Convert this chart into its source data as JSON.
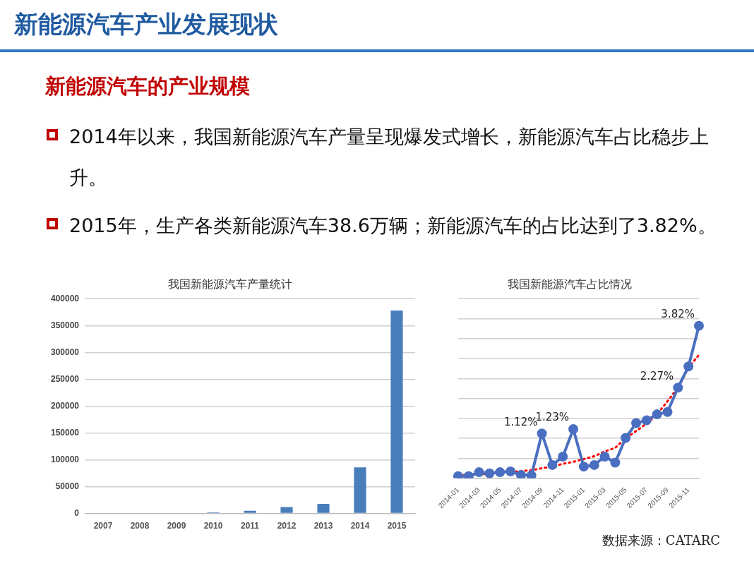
{
  "chart_data": [
    {
      "type": "other",
      "title": "新能源汽车产业发展现状",
      "subtitle": "新能源汽车的产业规模",
      "annotations": [
        "2014年以来，我国新能源汽车产量呈现爆发式增长，新能源汽车占比稳步上升。",
        "2015年，生产各类新能源汽车38.6万辆；新能源汽车的占比达到了3.82%。"
      ]
    },
    {
      "type": "bar",
      "title": "我国新能源汽车产量统计",
      "categories": [
        "2007",
        "2008",
        "2009",
        "2010",
        "2011",
        "2012",
        "2013",
        "2014",
        "2015"
      ],
      "series": [
        {
          "color": "#4a7ebb",
          "values": [
            0,
            0,
            0,
            2000,
            5000,
            12000,
            18000,
            86000,
            378000
          ]
        }
      ],
      "ylim": [
        0,
        400000
      ],
      "yticks": [
        0,
        50000,
        100000,
        150000,
        200000,
        250000,
        300000,
        350000,
        400000
      ],
      "grid": "y",
      "legend": false
    },
    {
      "type": "line",
      "title": "我国新能源汽车占比情况",
      "categories": [
        "2014-01",
        null,
        "2014-03",
        null,
        "2014-05",
        null,
        "2014-07",
        null,
        "2014-09",
        null,
        "2014-11",
        null,
        "2015-01",
        null,
        "2015-03",
        null,
        "2015-05",
        null,
        "2015-07",
        null,
        "2015-09",
        null,
        "2015-11",
        null
      ],
      "series": [
        {
          "color": "#4a6fc0",
          "marker": "circle",
          "line_style": "solid",
          "values": [
            0.05,
            0.05,
            0.15,
            0.12,
            0.15,
            0.17,
            0.08,
            0.07,
            1.12,
            0.33,
            0.54,
            1.23,
            0.29,
            0.33,
            0.54,
            0.39,
            1.01,
            1.38,
            1.45,
            1.6,
            1.66,
            2.27,
            2.8,
            3.82
          ],
          "value_labels": [
            null,
            null,
            null,
            null,
            null,
            null,
            null,
            null,
            "1.12%",
            null,
            null,
            "1.23%",
            null,
            null,
            null,
            null,
            null,
            null,
            null,
            null,
            null,
            "2.27%",
            null,
            "3.82%"
          ]
        },
        {
          "color": "#ff0000",
          "marker": "none",
          "line_style": "dotted",
          "values": [
            0.07,
            0.08,
            0.1,
            0.11,
            null,
            0.15,
            0.18,
            0.2,
            0.25,
            0.29,
            0.36,
            0.41,
            0.48,
            0.55,
            0.67,
            0.76,
            1.0,
            1.18,
            1.37,
            1.6,
            1.93,
            2.27,
            2.77,
            3.09
          ]
        }
      ],
      "ylim": [
        0,
        4.5
      ],
      "yticks": [
        {
          "value": 0,
          "label": null
        },
        {
          "value": 0.5,
          "label": null
        },
        {
          "value": 1,
          "label": null
        },
        {
          "value": 1.5,
          "label": null
        },
        {
          "value": 2,
          "label": null
        },
        {
          "value": 2.5,
          "label": null
        },
        {
          "value": 3,
          "label": null
        },
        {
          "value": 3.5,
          "label": null
        },
        {
          "value": 4,
          "label": null
        },
        {
          "value": 4.5,
          "label": null
        }
      ],
      "grid": "y",
      "legend": false,
      "tick_labels": "x",
      "annotations": [
        "数据来源：CATARC"
      ]
    }
  ]
}
